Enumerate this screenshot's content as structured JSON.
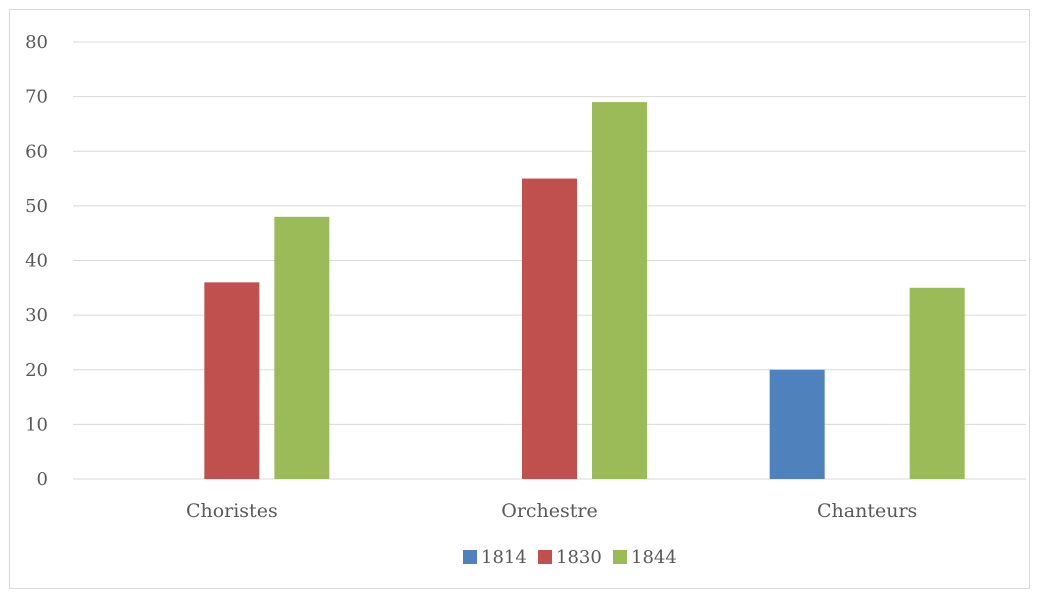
{
  "chart_data": {
    "type": "bar",
    "title": "",
    "xlabel": "",
    "ylabel": "",
    "categories": [
      "Choristes",
      "Orchestre",
      "Chanteurs"
    ],
    "series": [
      {
        "name": "1814",
        "values": [
          0,
          0,
          20
        ],
        "color": "#4f81bd"
      },
      {
        "name": "1830",
        "values": [
          36,
          55,
          0
        ],
        "color": "#c0504d"
      },
      {
        "name": "1844",
        "values": [
          48,
          69,
          35
        ],
        "color": "#9bbb59"
      }
    ],
    "ylim": [
      0,
      80
    ],
    "yticks": [
      "0",
      "10",
      "20",
      "30",
      "40",
      "50",
      "60",
      "70",
      "80"
    ],
    "grid": true,
    "legend": "bottom-center",
    "gridline_color": "#d9d9d9"
  }
}
